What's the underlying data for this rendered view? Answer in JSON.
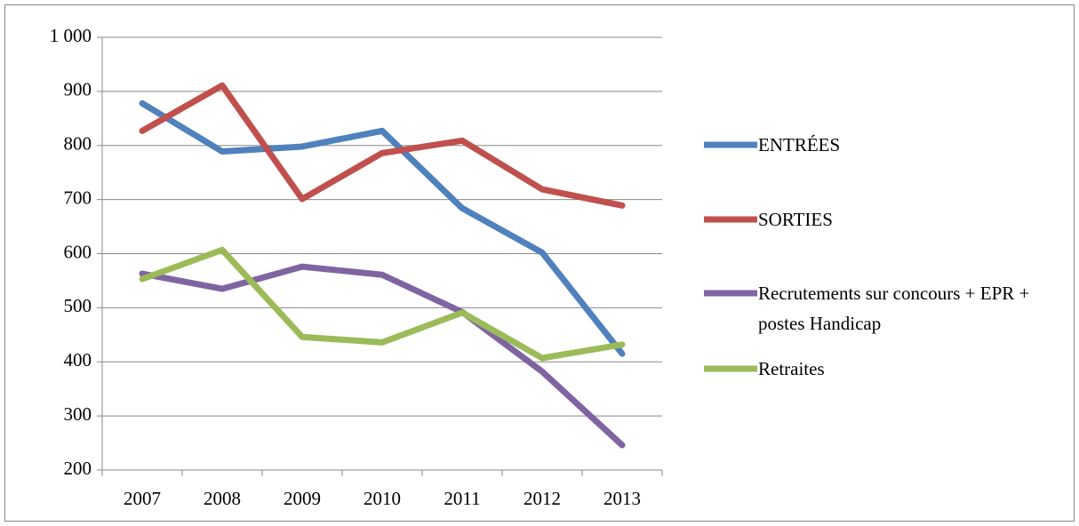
{
  "chart_data": {
    "type": "line",
    "categories": [
      "2007",
      "2008",
      "2009",
      "2010",
      "2011",
      "2012",
      "2013"
    ],
    "series": [
      {
        "name": "ENTRÉES",
        "color": "#4f81bd",
        "values": [
          878,
          789,
          798,
          827,
          684,
          602,
          415
        ]
      },
      {
        "name": "SORTIES",
        "color": "#c0504d",
        "values": [
          827,
          911,
          701,
          786,
          809,
          719,
          689
        ]
      },
      {
        "name": "Recrutements sur concours + EPR + postes Handicap",
        "color": "#8064a2",
        "values": [
          563,
          535,
          576,
          561,
          492,
          382,
          246
        ]
      },
      {
        "name": "Retraites",
        "color": "#9bbb59",
        "values": [
          553,
          607,
          446,
          436,
          491,
          407,
          432
        ]
      }
    ],
    "ylim": [
      200,
      1000
    ],
    "yticks": [
      200,
      300,
      400,
      500,
      600,
      700,
      800,
      900,
      {
        "value": 1000,
        "label": "1 000"
      }
    ],
    "grid": true,
    "legend": "right"
  }
}
